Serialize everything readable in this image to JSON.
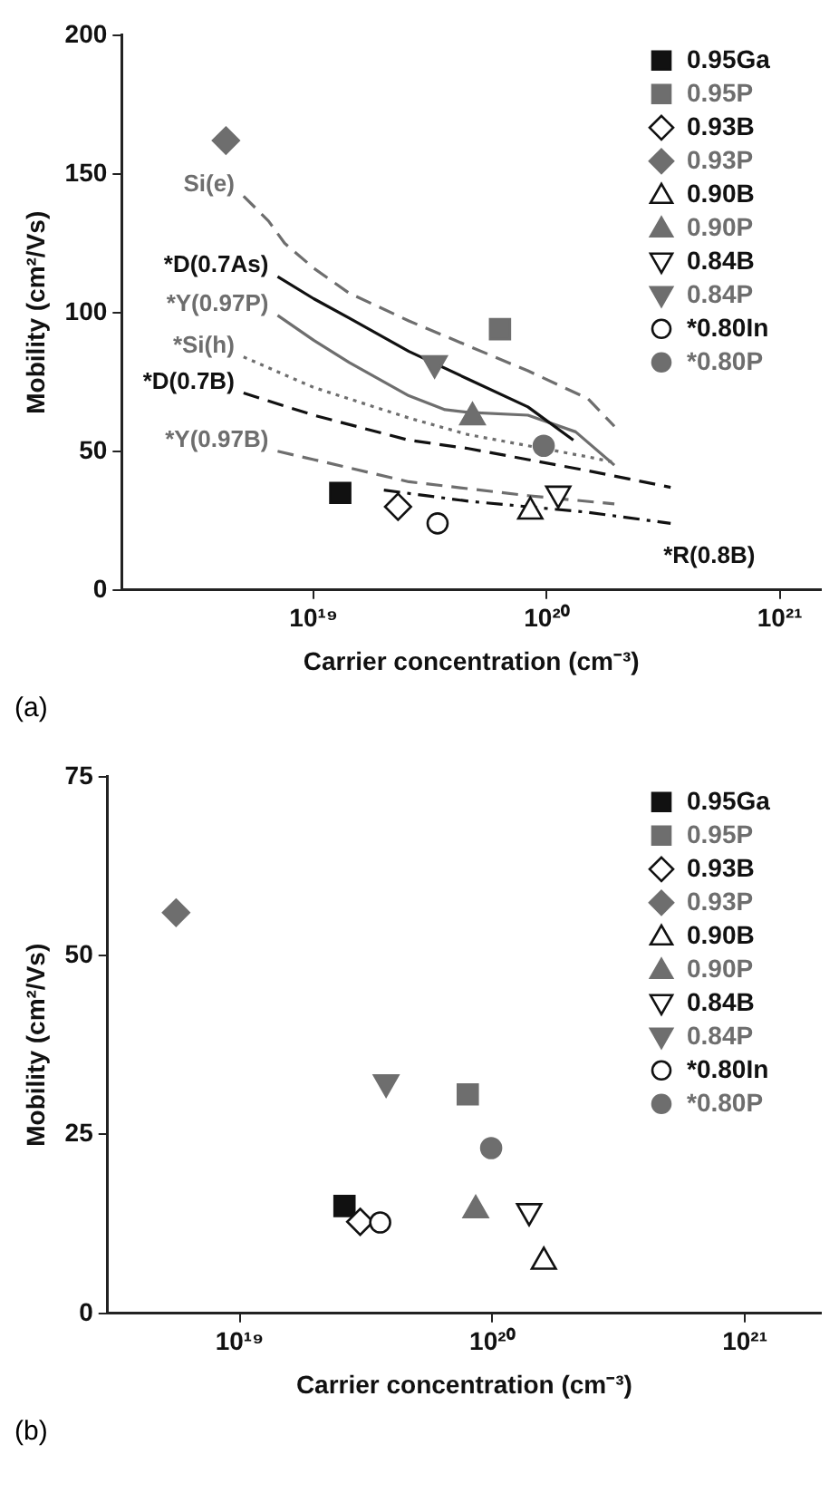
{
  "chart_data": [
    {
      "type": "scatter",
      "xlabel": "Carrier concentration (cm⁻³)",
      "ylabel": "Mobility (cm²/Vs)",
      "log": "x",
      "xlim": [
        1.5e+18,
        1.5e+21
      ],
      "ylim": [
        0,
        200
      ],
      "xticks": [
        {
          "value": 1e+19,
          "label": "10¹⁹"
        },
        {
          "value": 1e+20,
          "label": "10²⁰"
        },
        {
          "value": 1e+21,
          "label": "10²¹"
        }
      ],
      "yticks": [
        0,
        50,
        100,
        150,
        200
      ],
      "grid": false,
      "legend": "top right",
      "annotations": [
        "(a)"
      ],
      "series": [
        {
          "name": "0.95Ga",
          "color": "#111111",
          "marker": "square",
          "x": [
            1.3e+19
          ],
          "values": [
            35
          ]
        },
        {
          "name": "0.95P",
          "color": "#6e6e6e",
          "marker": "square",
          "x": [
            6.3e+19
          ],
          "values": [
            94
          ]
        },
        {
          "name": "0.93B",
          "color": "#111111",
          "marker": "diamond-open",
          "x": [
            2.3e+19
          ],
          "values": [
            30
          ]
        },
        {
          "name": "0.93P",
          "color": "#6e6e6e",
          "marker": "diamond",
          "x": [
            4.2e+18
          ],
          "values": [
            162
          ]
        },
        {
          "name": "0.90B",
          "color": "#111111",
          "marker": "triangle-open",
          "x": [
            8.5e+19
          ],
          "values": [
            29
          ]
        },
        {
          "name": "0.90P",
          "color": "#6e6e6e",
          "marker": "triangle",
          "x": [
            4.8e+19
          ],
          "values": [
            63
          ]
        },
        {
          "name": "0.84B",
          "color": "#111111",
          "marker": "triangle-down-open",
          "x": [
            1.12e+20
          ],
          "values": [
            34
          ]
        },
        {
          "name": "0.84P",
          "color": "#6e6e6e",
          "marker": "triangle-down",
          "x": [
            3.3e+19
          ],
          "values": [
            81
          ]
        },
        {
          "name": "*0.80In",
          "color": "#111111",
          "marker": "circle-open",
          "x": [
            3.4e+19
          ],
          "values": [
            24
          ]
        },
        {
          "name": "*0.80P",
          "color": "#6e6e6e",
          "marker": "circle",
          "x": [
            9.7e+19
          ],
          "values": [
            52
          ]
        },
        {
          "name": "Si(e)",
          "type": "line",
          "color": "#6e6e6e",
          "marker": "none",
          "line_style": "dashed",
          "x": [
            5e+18,
            6.4e+18,
            7.5e+18,
            1e+19,
            1.42e+19,
            2.56e+19,
            4.6e+19,
            8.3e+19,
            1.5e+20,
            1.95e+20
          ],
          "values": [
            142,
            133,
            125,
            116,
            107,
            97,
            88,
            79,
            69,
            59
          ]
        },
        {
          "name": "*D(0.7As)",
          "type": "line",
          "color": "#111111",
          "marker": "none",
          "line_style": "solid",
          "x": [
            7e+18,
            1e+19,
            1.42e+19,
            2.56e+19,
            4.6e+19,
            8.3e+19,
            1.3e+20
          ],
          "values": [
            113,
            105,
            98,
            86,
            76,
            66,
            54
          ]
        },
        {
          "name": "*Y(0.97P)",
          "type": "line",
          "color": "#6e6e6e",
          "marker": "none",
          "line_style": "solid",
          "x": [
            7e+18,
            1e+19,
            1.42e+19,
            2.56e+19,
            3.66e+19,
            4.6e+19,
            8.3e+19,
            1.33e+20,
            1.95e+20
          ],
          "values": [
            99,
            90,
            82,
            70,
            65,
            64,
            63,
            57,
            45
          ]
        },
        {
          "name": "*Si(h)",
          "type": "line",
          "color": "#6e6e6e",
          "marker": "none",
          "line_style": "dotted",
          "x": [
            5e+18,
            1e+19,
            2.56e+19,
            4.6e+19,
            8.3e+19,
            1.5e+20,
            1.95e+20
          ],
          "values": [
            84,
            73,
            62,
            56,
            52,
            48,
            46
          ]
        },
        {
          "name": "*D(0.7B)",
          "type": "line",
          "color": "#111111",
          "marker": "none",
          "line_style": "dashed",
          "x": [
            5e+18,
            1e+19,
            2.56e+19,
            4.6e+19,
            8.3e+19,
            1.5e+20,
            3.4e+20
          ],
          "values": [
            71,
            63,
            54,
            51,
            47,
            43,
            37
          ]
        },
        {
          "name": "*Y(0.97B)",
          "type": "line",
          "color": "#6e6e6e",
          "marker": "none",
          "line_style": "dashed",
          "x": [
            7e+18,
            1e+19,
            2.56e+19,
            8.3e+19,
            1.95e+20
          ],
          "values": [
            50,
            47,
            39,
            34,
            31
          ]
        },
        {
          "name": "*R(0.8B)",
          "type": "line",
          "color": "#111111",
          "marker": "none",
          "line_style": "dashdot",
          "x": [
            2e+19,
            4.6e+19,
            8.3e+19,
            1.5e+20,
            3.4e+20
          ],
          "values": [
            36,
            32,
            30,
            28,
            24
          ]
        }
      ]
    },
    {
      "type": "scatter",
      "xlabel": "Carrier concentration (cm⁻³)",
      "ylabel": "Mobility (cm²/Vs)",
      "log": "x",
      "xlim": [
        3e+18,
        2e+21
      ],
      "ylim": [
        0,
        75
      ],
      "xticks": [
        {
          "value": 1e+19,
          "label": "10¹⁹"
        },
        {
          "value": 1e+20,
          "label": "10²⁰"
        },
        {
          "value": 1e+21,
          "label": "10²¹"
        }
      ],
      "yticks": [
        0,
        25,
        50,
        75
      ],
      "grid": false,
      "legend": "top right",
      "annotations": [
        "(b)"
      ],
      "series": [
        {
          "name": "0.95Ga",
          "color": "#111111",
          "marker": "square",
          "x": [
            2.6e+19
          ],
          "values": [
            15
          ]
        },
        {
          "name": "0.95P",
          "color": "#6e6e6e",
          "marker": "square",
          "x": [
            8e+19
          ],
          "values": [
            30.6
          ]
        },
        {
          "name": "0.93B",
          "color": "#111111",
          "marker": "diamond-open",
          "x": [
            3e+19
          ],
          "values": [
            12.8
          ]
        },
        {
          "name": "0.93P",
          "color": "#6e6e6e",
          "marker": "diamond",
          "x": [
            5.6e+18
          ],
          "values": [
            56
          ]
        },
        {
          "name": "0.90B",
          "color": "#111111",
          "marker": "triangle-open",
          "x": [
            1.6e+20
          ],
          "values": [
            7.5
          ]
        },
        {
          "name": "0.90P",
          "color": "#6e6e6e",
          "marker": "triangle",
          "x": [
            8.6e+19
          ],
          "values": [
            14.7
          ]
        },
        {
          "name": "0.84B",
          "color": "#111111",
          "marker": "triangle-down-open",
          "x": [
            1.4e+20
          ],
          "values": [
            14
          ]
        },
        {
          "name": "0.84P",
          "color": "#6e6e6e",
          "marker": "triangle-down",
          "x": [
            3.8e+19
          ],
          "values": [
            32
          ]
        },
        {
          "name": "*0.80In",
          "color": "#111111",
          "marker": "circle-open",
          "x": [
            3.6e+19
          ],
          "values": [
            12.7
          ]
        },
        {
          "name": "*0.80P",
          "color": "#6e6e6e",
          "marker": "circle",
          "x": [
            9.9e+19
          ],
          "values": [
            23.1
          ]
        }
      ]
    }
  ]
}
